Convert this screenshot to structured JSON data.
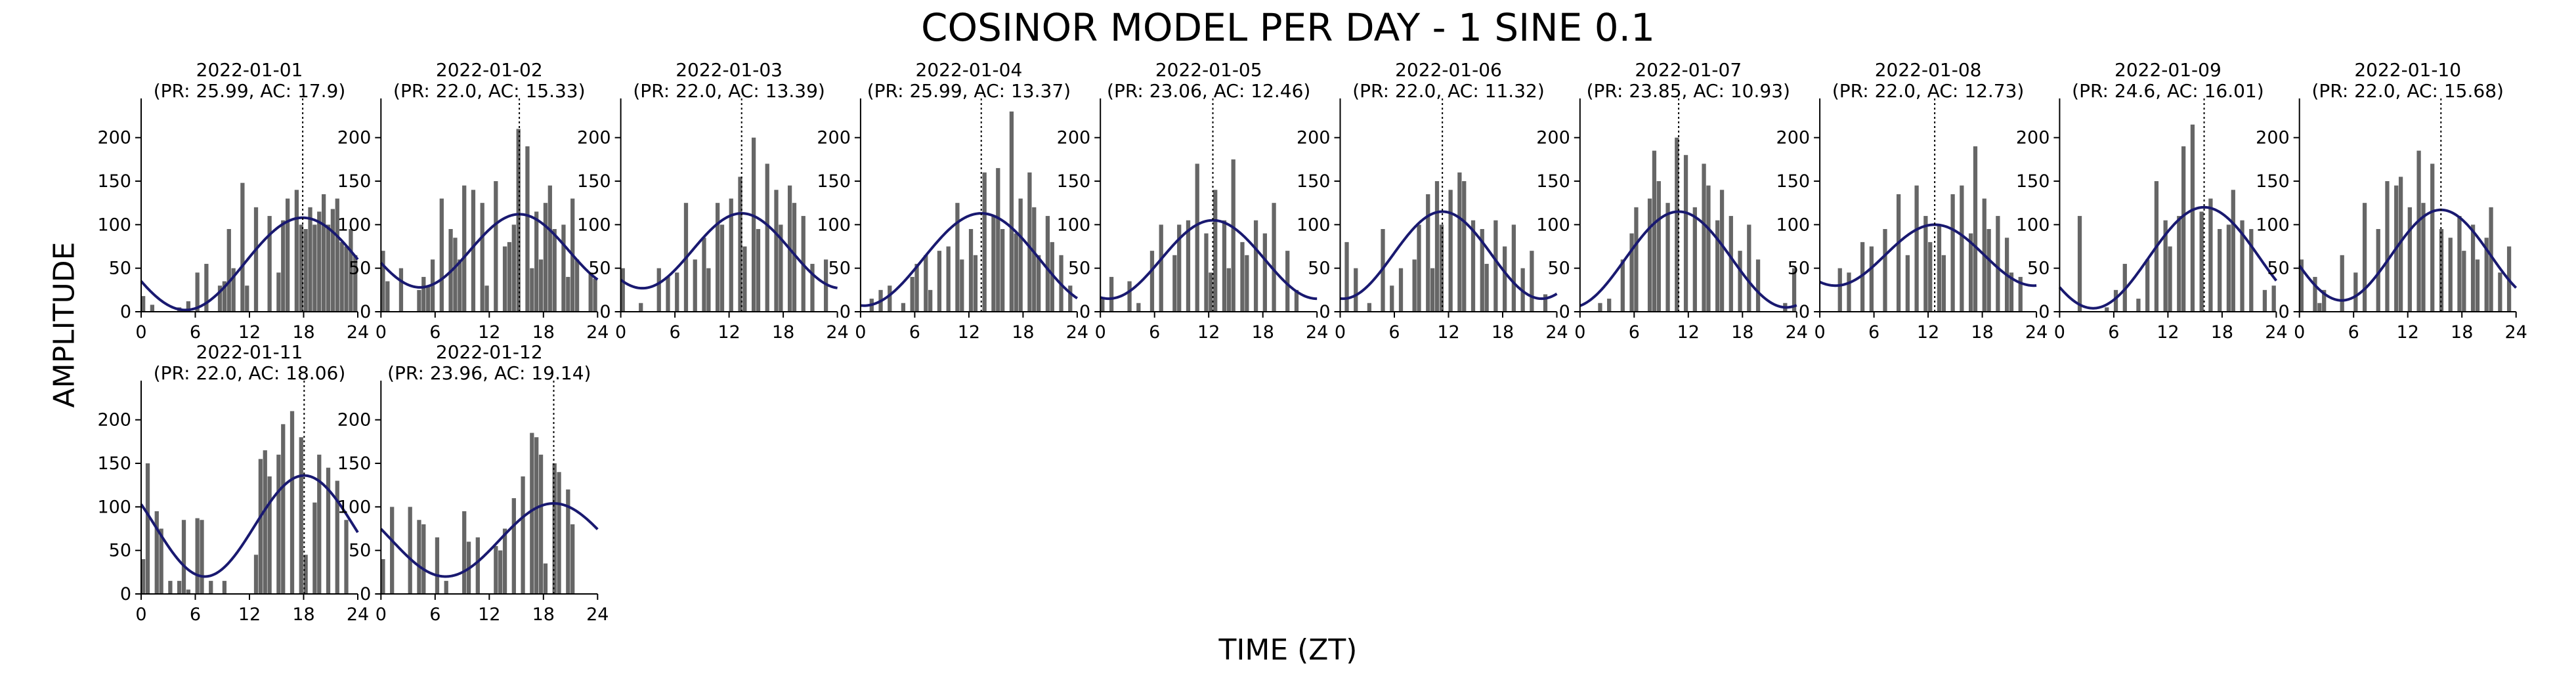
{
  "figure": {
    "title": "COSINOR MODEL PER DAY - 1 SINE 0.1",
    "xlabel": "TIME (ZT)",
    "ylabel": "AMPLITUDE"
  },
  "colors": {
    "bar": "#666666",
    "fit": "#191970",
    "axis": "#000000",
    "acrophase_line": "#000000"
  },
  "chart_data": {
    "type": "bar",
    "xlim": [
      0,
      24
    ],
    "ylim": [
      0,
      245
    ],
    "xticks": [
      0,
      6,
      12,
      18,
      24
    ],
    "yticks": [
      0,
      50,
      100,
      150,
      200
    ],
    "grid": false,
    "panels": [
      {
        "date": "2022-01-01",
        "subtitle": "(PR: 25.99, AC: 17.9)",
        "period": 25.99,
        "acrophase": 17.9,
        "mesor": 55,
        "amplitude": 53,
        "values": [
          18,
          0,
          8,
          0,
          0,
          0,
          0,
          0,
          5,
          0,
          12,
          0,
          45,
          0,
          55,
          0,
          0,
          30,
          35,
          95,
          50,
          0,
          148,
          30,
          0,
          120,
          0,
          0,
          110,
          0,
          45,
          105,
          130,
          0,
          140,
          100,
          95,
          120,
          100,
          115,
          135,
          100,
          118,
          130,
          80,
          75,
          95,
          65
        ]
      },
      {
        "date": "2022-01-02",
        "subtitle": "(PR: 22.0, AC: 15.33)",
        "period": 22.0,
        "acrophase": 15.33,
        "mesor": 70,
        "amplitude": 42,
        "values": [
          70,
          35,
          0,
          0,
          50,
          0,
          0,
          0,
          25,
          40,
          30,
          60,
          0,
          130,
          0,
          95,
          85,
          60,
          145,
          0,
          140,
          0,
          125,
          30,
          0,
          150,
          0,
          75,
          80,
          100,
          210,
          0,
          190,
          50,
          115,
          60,
          125,
          145,
          95,
          0,
          100,
          40,
          130,
          60,
          0,
          0,
          45,
          38
        ]
      },
      {
        "date": "2022-01-03",
        "subtitle": "(PR: 22.0, AC: 13.39)",
        "period": 22.0,
        "acrophase": 13.39,
        "mesor": 70,
        "amplitude": 43,
        "values": [
          50,
          0,
          0,
          0,
          10,
          0,
          0,
          0,
          50,
          0,
          40,
          0,
          45,
          0,
          125,
          0,
          60,
          0,
          85,
          50,
          0,
          125,
          100,
          0,
          130,
          0,
          155,
          75,
          0,
          200,
          95,
          0,
          170,
          0,
          140,
          100,
          0,
          145,
          125,
          0,
          110,
          0,
          55,
          0,
          0,
          60,
          0,
          0
        ]
      },
      {
        "date": "2022-01-04",
        "subtitle": "(PR: 25.99, AC: 13.37)",
        "period": 25.99,
        "acrophase": 13.37,
        "mesor": 60,
        "amplitude": 53,
        "values": [
          0,
          0,
          15,
          0,
          25,
          0,
          30,
          0,
          0,
          10,
          0,
          40,
          55,
          0,
          65,
          25,
          0,
          70,
          0,
          75,
          0,
          125,
          60,
          0,
          95,
          65,
          0,
          160,
          0,
          110,
          165,
          95,
          0,
          230,
          90,
          130,
          0,
          160,
          120,
          65,
          0,
          110,
          80,
          0,
          65,
          0,
          30,
          0
        ]
      },
      {
        "date": "2022-01-05",
        "subtitle": "(PR: 23.06, AC: 12.46)",
        "period": 23.06,
        "acrophase": 12.46,
        "mesor": 60,
        "amplitude": 45,
        "values": [
          15,
          0,
          40,
          0,
          0,
          0,
          35,
          0,
          10,
          0,
          0,
          70,
          0,
          100,
          0,
          0,
          65,
          100,
          0,
          105,
          0,
          170,
          0,
          90,
          45,
          140,
          0,
          105,
          50,
          175,
          0,
          80,
          65,
          0,
          105,
          0,
          90,
          0,
          125,
          0,
          0,
          70,
          0,
          25,
          0,
          0,
          0,
          0
        ]
      },
      {
        "date": "2022-01-06",
        "subtitle": "(PR: 22.0, AC: 11.32)",
        "period": 22.0,
        "acrophase": 11.32,
        "mesor": 65,
        "amplitude": 50,
        "values": [
          0,
          80,
          0,
          50,
          0,
          0,
          10,
          0,
          0,
          95,
          0,
          30,
          0,
          50,
          0,
          0,
          60,
          100,
          0,
          135,
          50,
          150,
          100,
          0,
          140,
          0,
          160,
          150,
          0,
          105,
          0,
          95,
          55,
          0,
          105,
          0,
          75,
          0,
          100,
          0,
          50,
          0,
          70,
          0,
          0,
          20,
          0,
          0
        ]
      },
      {
        "date": "2022-01-07",
        "subtitle": "(PR: 23.85, AC: 10.93)",
        "period": 23.85,
        "acrophase": 10.93,
        "mesor": 60,
        "amplitude": 55,
        "values": [
          0,
          0,
          0,
          0,
          10,
          0,
          15,
          0,
          0,
          60,
          0,
          90,
          120,
          0,
          0,
          130,
          185,
          150,
          0,
          125,
          0,
          200,
          0,
          180,
          0,
          120,
          0,
          170,
          145,
          0,
          105,
          140,
          0,
          110,
          0,
          70,
          0,
          100,
          0,
          60,
          0,
          0,
          0,
          0,
          0,
          10,
          0,
          50
        ]
      },
      {
        "date": "2022-01-08",
        "subtitle": "(PR: 22.0, AC: 12.73)",
        "period": 22.0,
        "acrophase": 12.73,
        "mesor": 65,
        "amplitude": 35,
        "values": [
          0,
          0,
          0,
          0,
          50,
          0,
          45,
          0,
          0,
          80,
          0,
          75,
          0,
          0,
          95,
          0,
          0,
          135,
          0,
          65,
          0,
          145,
          0,
          110,
          80,
          0,
          100,
          65,
          0,
          135,
          0,
          145,
          0,
          90,
          190,
          0,
          130,
          95,
          0,
          110,
          0,
          85,
          45,
          0,
          40,
          0,
          0,
          0
        ]
      },
      {
        "date": "2022-01-09",
        "subtitle": "(PR: 24.6, AC: 16.01)",
        "period": 24.6,
        "acrophase": 16.01,
        "mesor": 62,
        "amplitude": 58,
        "values": [
          0,
          0,
          0,
          0,
          110,
          0,
          0,
          0,
          0,
          0,
          5,
          0,
          25,
          0,
          55,
          0,
          0,
          15,
          0,
          60,
          0,
          150,
          0,
          105,
          75,
          0,
          110,
          190,
          0,
          215,
          0,
          115,
          0,
          130,
          0,
          95,
          0,
          100,
          140,
          0,
          105,
          0,
          95,
          0,
          0,
          25,
          0,
          30
        ]
      },
      {
        "date": "2022-01-10",
        "subtitle": "(PR: 22.0, AC: 15.68)",
        "period": 22.0,
        "acrophase": 15.68,
        "mesor": 65,
        "amplitude": 52,
        "values": [
          60,
          0,
          0,
          40,
          10,
          25,
          0,
          0,
          0,
          65,
          0,
          0,
          45,
          0,
          125,
          0,
          0,
          95,
          0,
          150,
          0,
          145,
          155,
          0,
          120,
          0,
          185,
          125,
          0,
          170,
          0,
          95,
          0,
          85,
          0,
          110,
          70,
          0,
          100,
          60,
          0,
          85,
          120,
          0,
          45,
          0,
          75,
          0
        ]
      },
      {
        "date": "2022-01-11",
        "subtitle": "(PR: 22.0, AC: 18.06)",
        "period": 22.0,
        "acrophase": 18.06,
        "mesor": 78,
        "amplitude": 58,
        "values": [
          40,
          150,
          0,
          95,
          75,
          0,
          15,
          0,
          15,
          85,
          5,
          0,
          87,
          85,
          0,
          15,
          0,
          0,
          15,
          0,
          0,
          0,
          0,
          0,
          0,
          45,
          155,
          165,
          135,
          0,
          160,
          195,
          0,
          210,
          0,
          180,
          45,
          0,
          105,
          160,
          0,
          145,
          0,
          130,
          0,
          85,
          0,
          0
        ]
      },
      {
        "date": "2022-01-12",
        "subtitle": "(PR: 23.96, AC: 19.14)",
        "period": 23.96,
        "acrophase": 19.14,
        "mesor": 62,
        "amplitude": 42,
        "values": [
          40,
          0,
          100,
          0,
          0,
          0,
          100,
          0,
          85,
          80,
          0,
          0,
          65,
          0,
          15,
          0,
          0,
          0,
          95,
          60,
          0,
          65,
          0,
          0,
          0,
          55,
          50,
          75,
          0,
          110,
          0,
          135,
          0,
          185,
          180,
          160,
          35,
          0,
          150,
          140,
          0,
          120,
          80,
          0,
          0,
          0,
          0,
          0
        ]
      }
    ]
  }
}
